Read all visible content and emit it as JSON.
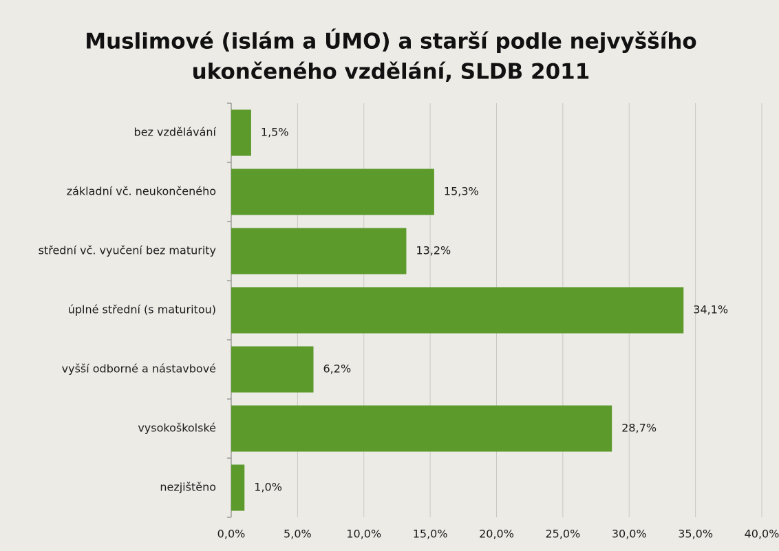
{
  "chart_data": {
    "type": "barh",
    "title": [
      "Muslimové (islám a ÚMO) a starší podle nejvyššího",
      "ukončeného vzdělání, SLDB 2011"
    ],
    "categories": [
      "bez vzdělávání",
      "základní vč. neukončeného",
      "střední vč. vyučení bez maturity",
      "úplné střední (s maturitou)",
      "vyšší odborné a nástavbové",
      "vysokoškolské",
      "nezjištěno"
    ],
    "values": [
      1.5,
      15.3,
      13.2,
      34.1,
      6.2,
      28.7,
      1.0
    ],
    "value_labels": [
      "1,5%",
      "15,3%",
      "13,2%",
      "34,1%",
      "6,2%",
      "28,7%",
      "1,0%"
    ],
    "color": "#5c9a2c",
    "xlim": [
      0,
      40
    ],
    "xticks": [
      {
        "value": 0,
        "label": "0,0%"
      },
      {
        "value": 5,
        "label": "5,0%"
      },
      {
        "value": 10,
        "label": "10,0%"
      },
      {
        "value": 15,
        "label": "15,0%"
      },
      {
        "value": 20,
        "label": "20,0%"
      },
      {
        "value": 25,
        "label": "25,0%"
      },
      {
        "value": 30,
        "label": "30,0%"
      },
      {
        "value": 35,
        "label": "35,0%"
      },
      {
        "value": 40,
        "label": "40,0%"
      }
    ],
    "grid": true
  }
}
